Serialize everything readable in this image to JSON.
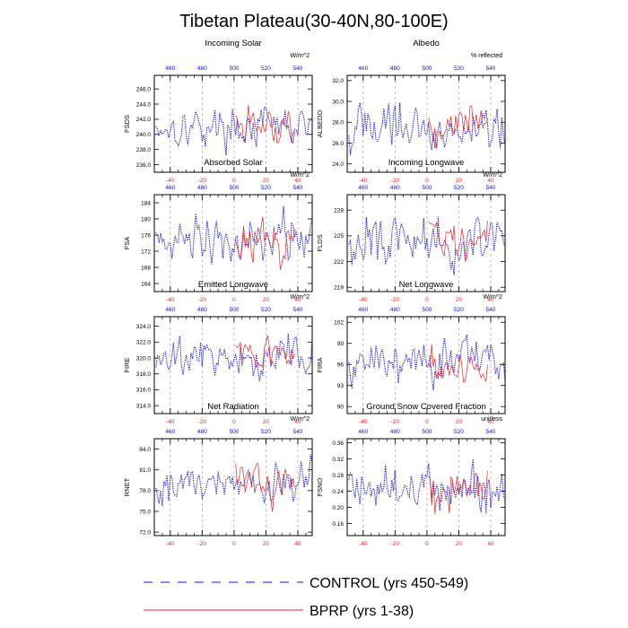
{
  "title": "Tibetan Plateau(30-40N,80-100E)",
  "colors": {
    "control": "#1010e0",
    "bprp": "#ee2222",
    "grid": "#999999",
    "axis": "#000000"
  },
  "legend": {
    "control_label": "CONTROL (yrs 450-549)",
    "bprp_label": "BPRP (yrs 1-38)"
  },
  "chart_data": [
    {
      "type": "line",
      "title": "Incoming Solar",
      "ylabel": "FSDS",
      "units": "W/m^2",
      "ylim": [
        235.0,
        247.8
      ],
      "yticks": [
        236.0,
        238.0,
        240.0,
        242.0,
        244.0,
        246.0
      ],
      "ytick_decimals": 1,
      "xlim": [
        -50,
        49
      ],
      "bottom_ticks": [
        -40,
        -20,
        0,
        20,
        40
      ],
      "top_ticks": [
        460,
        480,
        500,
        520,
        540
      ],
      "control": {
        "x_start": -49,
        "mean": 241.0,
        "amp": 2.4,
        "values": []
      },
      "bprp": {
        "x_start": 1,
        "mean": 241.2,
        "amp": 2.3,
        "values": []
      }
    },
    {
      "type": "line",
      "title": "Albedo",
      "ylabel": "ALBEDO",
      "units": "% reflected",
      "ylim": [
        23.2,
        32.5
      ],
      "yticks": [
        24.0,
        26.0,
        28.0,
        30.0,
        32.0
      ],
      "ytick_decimals": 1,
      "xlim": [
        -50,
        49
      ],
      "bottom_ticks": [
        -40,
        -20,
        0,
        20,
        40
      ],
      "top_ticks": [
        460,
        480,
        500,
        520,
        540
      ],
      "control": {
        "x_start": -49,
        "mean": 27.5,
        "amp": 2.3,
        "values": []
      },
      "bprp": {
        "x_start": 1,
        "mean": 27.8,
        "amp": 2.0,
        "values": []
      }
    },
    {
      "type": "line",
      "title": "Absorbed Solar",
      "ylabel": "FSA",
      "units": "W/m^2",
      "ylim": [
        162,
        186
      ],
      "yticks": [
        164,
        168,
        172,
        176,
        180,
        184
      ],
      "ytick_decimals": 0,
      "xlim": [
        -50,
        49
      ],
      "bottom_ticks": [
        -40,
        -20,
        0,
        20,
        40
      ],
      "top_ticks": [
        460,
        480,
        500,
        520,
        540
      ],
      "control": {
        "x_start": -49,
        "mean": 175.0,
        "amp": 6.0,
        "values": []
      },
      "bprp": {
        "x_start": 1,
        "mean": 174.5,
        "amp": 5.5,
        "values": []
      }
    },
    {
      "type": "line",
      "title": "Incoming Longwave",
      "ylabel": "FLDS",
      "units": "W/m^2",
      "ylim": [
        218.5,
        229.8
      ],
      "yticks": [
        219,
        222,
        225,
        228
      ],
      "ytick_decimals": 0,
      "xlim": [
        -50,
        49
      ],
      "bottom_ticks": [
        -40,
        -20,
        0,
        20,
        40
      ],
      "top_ticks": [
        460,
        480,
        500,
        520,
        540
      ],
      "control": {
        "x_start": -49,
        "mean": 224.2,
        "amp": 2.6,
        "values": []
      },
      "bprp": {
        "x_start": 1,
        "mean": 224.5,
        "amp": 2.8,
        "values": []
      }
    },
    {
      "type": "line",
      "title": "Emitted Longwave",
      "ylabel": "FIRE",
      "units": "W/m^2",
      "ylim": [
        313.0,
        325.2
      ],
      "yticks": [
        314.0,
        316.0,
        318.0,
        320.0,
        322.0,
        324.0
      ],
      "ytick_decimals": 1,
      "xlim": [
        -50,
        49
      ],
      "bottom_ticks": [
        -40,
        -20,
        0,
        20,
        40
      ],
      "top_ticks": [
        460,
        480,
        500,
        520,
        540
      ],
      "control": {
        "x_start": -49,
        "mean": 320.0,
        "amp": 2.6,
        "values": []
      },
      "bprp": {
        "x_start": 1,
        "mean": 320.5,
        "amp": 2.2,
        "values": []
      }
    },
    {
      "type": "line",
      "title": "Net Longwave",
      "ylabel": "FIRA",
      "units": "W/m^2",
      "ylim": [
        89.0,
        102.8
      ],
      "yticks": [
        90,
        93,
        96,
        99,
        102
      ],
      "ytick_decimals": 0,
      "xlim": [
        -50,
        49
      ],
      "bottom_ticks": [
        -40,
        -20,
        0,
        20,
        40
      ],
      "top_ticks": [
        460,
        480,
        500,
        520,
        540
      ],
      "control": {
        "x_start": -49,
        "mean": 95.8,
        "amp": 3.2,
        "values": []
      },
      "bprp": {
        "x_start": 1,
        "mean": 95.5,
        "amp": 2.8,
        "values": []
      }
    },
    {
      "type": "line",
      "title": "Net Radiation",
      "ylabel": "RNET",
      "units": "W/m^2",
      "ylim": [
        71.5,
        85.5
      ],
      "yticks": [
        72.0,
        75.0,
        78.0,
        81.0,
        84.0
      ],
      "ytick_decimals": 1,
      "xlim": [
        -50,
        49
      ],
      "bottom_ticks": [
        -40,
        -20,
        0,
        20,
        40
      ],
      "top_ticks": [
        460,
        480,
        500,
        520,
        540
      ],
      "control": {
        "x_start": -49,
        "mean": 79.0,
        "amp": 3.2,
        "values": []
      },
      "bprp": {
        "x_start": 1,
        "mean": 79.0,
        "amp": 3.0,
        "values": []
      }
    },
    {
      "type": "line",
      "title": "Ground Snow Covered Fraction",
      "ylabel": "FSNO",
      "units": "unitless",
      "ylim": [
        0.13,
        0.37
      ],
      "yticks": [
        0.16,
        0.2,
        0.24,
        0.28,
        0.32,
        0.36
      ],
      "ytick_decimals": 2,
      "xlim": [
        -50,
        49
      ],
      "bottom_ticks": [
        -40,
        -20,
        0,
        20,
        40
      ],
      "top_ticks": [
        460,
        480,
        500,
        520,
        540
      ],
      "control": {
        "x_start": -49,
        "mean": 0.245,
        "amp": 0.055,
        "values": []
      },
      "bprp": {
        "x_start": 1,
        "mean": 0.24,
        "amp": 0.05,
        "values": []
      }
    }
  ]
}
